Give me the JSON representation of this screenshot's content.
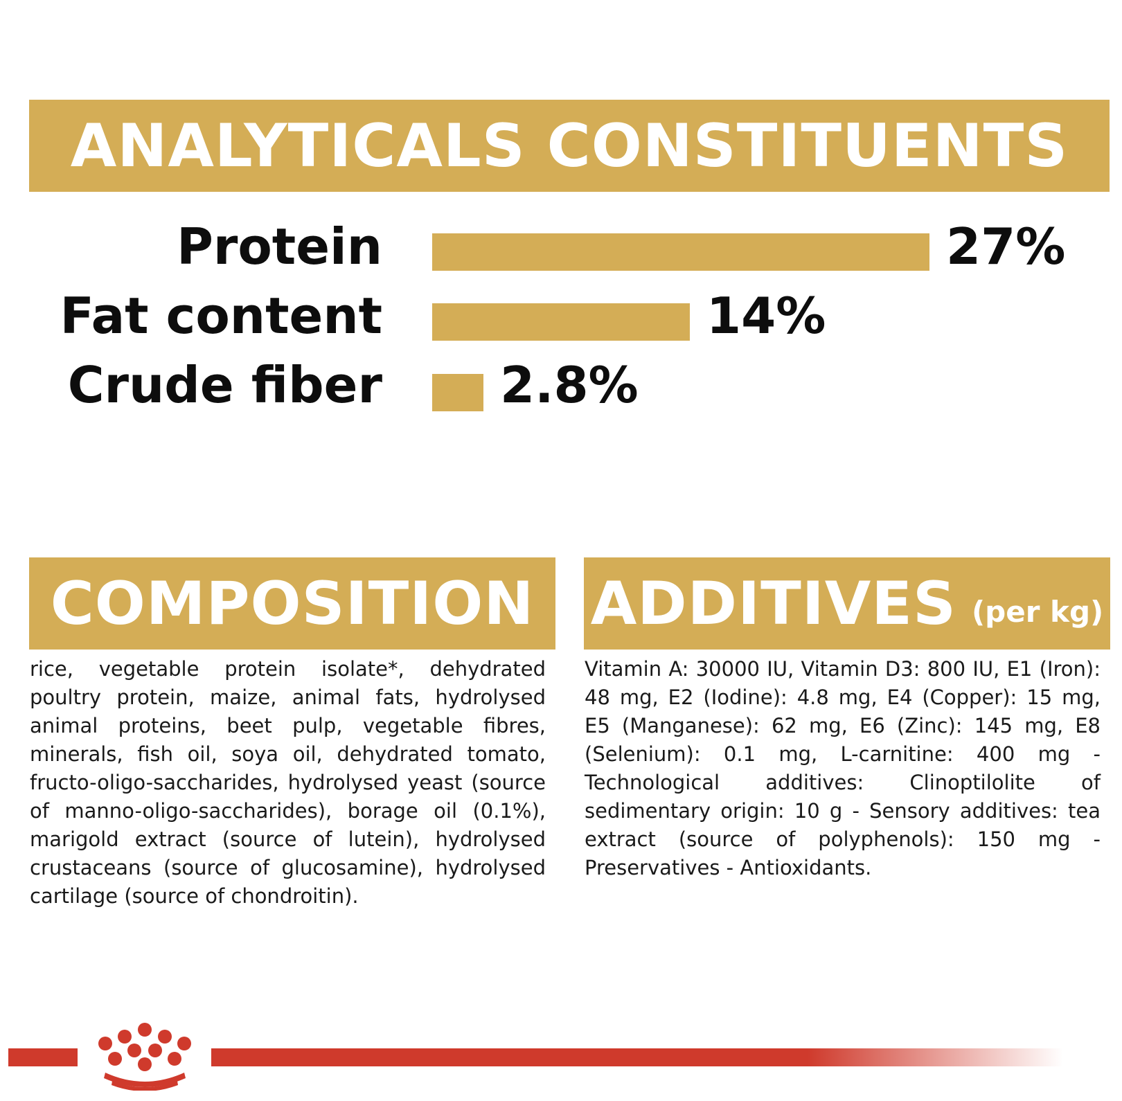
{
  "analytics": {
    "title": "ANALYTICALS CONSTITUENTS",
    "rows": [
      {
        "label": "Protein",
        "value": 27,
        "value_text": "27%"
      },
      {
        "label": "Fat content",
        "value": 14,
        "value_text": "14%"
      },
      {
        "label": "Crude fiber",
        "value": 2.8,
        "value_text": "2.8%"
      }
    ]
  },
  "composition": {
    "title": "COMPOSITION",
    "text": "rice, vegetable protein isolate*, dehydrated poultry protein, maize, animal fats, hydrolysed animal proteins, beet pulp, vegetable fibres, minerals, fish oil, soya oil, dehydrated tomato, fructo-oligo-saccharides, hydrolysed yeast (source of manno-oligo-saccharides), borage oil (0.1%), marigold extract (source of lutein), hydrolysed crustaceans (source of glucosamine), hydrolysed cartilage (source of chondroitin)."
  },
  "additives": {
    "title": "ADDITIVES",
    "subtitle": "(per kg)",
    "text": "Vitamin A: 30000 IU, Vitamin D3: 800 IU, E1 (Iron): 48 mg, E2 (Iodine): 4.8 mg, E4 (Copper): 15 mg, E5 (Manganese): 62 mg, E6 (Zinc): 145 mg, E8 (Selenium): 0.1 mg, L-carnitine: 400 mg - Technological additives: Clinoptilolite of sedimentary origin: 10 g - Sensory additives: tea extract (source of polyphenols): 150 mg - Preservatives - Antioxidants."
  },
  "colors": {
    "accent_gold": "#d4ad56",
    "brand_red": "#cf3a2c"
  },
  "footer": {
    "logo_icon": "royal-canin-crown-icon"
  }
}
